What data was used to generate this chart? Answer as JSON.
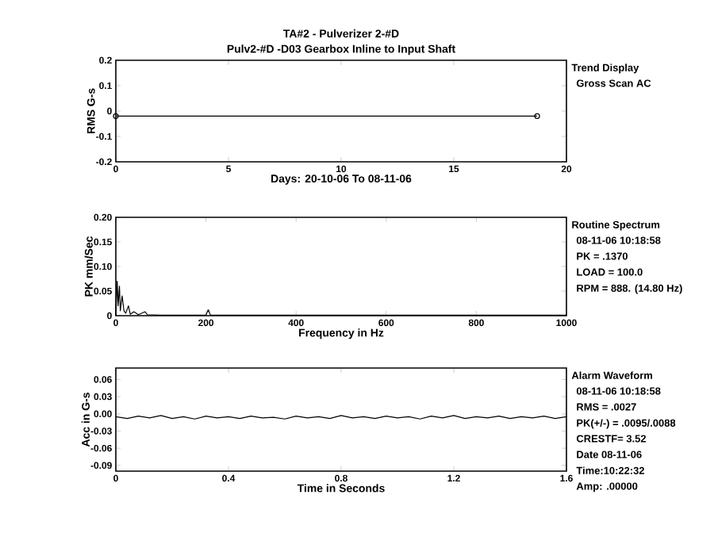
{
  "chart_data": [
    {
      "type": "line",
      "title": "TA#2 - Pulverizer 2-#D",
      "subtitle": "Pulv2-#D  -D03   Gearbox Inline to Input Shaft",
      "xlabel": "Days:  20-10-06   To  08-11-06",
      "ylabel": "RMS G-s",
      "annotations": [
        "Trend Display",
        "Gross Scan AC"
      ],
      "x": [
        0,
        18.7
      ],
      "series": [
        {
          "color": "#000000",
          "values": [
            -0.02,
            -0.02
          ]
        }
      ],
      "marker": "circle",
      "xlim": [
        0,
        20
      ],
      "ylim": [
        -0.2,
        0.2
      ],
      "xticks": [
        0,
        5,
        10,
        15,
        20
      ],
      "yticks": [
        -0.2,
        -0.1,
        0,
        0.1,
        0.2
      ]
    },
    {
      "type": "line",
      "xlabel": "Frequency in Hz",
      "ylabel": "PK mm/Sec",
      "annotations": [
        "Routine Spectrum",
        "08-11-06   10:18:58",
        "PK  =  .1370",
        "LOAD = 100.0",
        "RPM = 888. (14.80 Hz)"
      ],
      "x": [
        0,
        3,
        5,
        8,
        10,
        14,
        18,
        22,
        28,
        32,
        40,
        50,
        60,
        65,
        70,
        100,
        200,
        205,
        210,
        300,
        1000
      ],
      "series": [
        {
          "color": "#000000",
          "values": [
            0,
            0.07,
            0.02,
            0.06,
            0.01,
            0.04,
            0.01,
            0.005,
            0.02,
            0.003,
            0.008,
            0.002,
            0.006,
            0.008,
            0.002,
            0.001,
            0.001,
            0.012,
            0.001,
            0.001,
            0.001
          ]
        }
      ],
      "marker": "none",
      "xlim": [
        0,
        1000
      ],
      "ylim": [
        0,
        0.2
      ],
      "xticks": [
        0,
        200,
        400,
        600,
        800,
        1000
      ],
      "yticks": [
        0,
        0.05,
        {
          "value": 0.1,
          "label": "0.10"
        },
        0.15,
        {
          "value": 0.2,
          "label": "0.20"
        }
      ]
    },
    {
      "type": "line",
      "xlabel": "Time in Seconds",
      "ylabel": "Acc in G-s",
      "annotations": [
        "Alarm Waveform",
        "08-11-06   10:18:58",
        "RMS =  .0027",
        "PK(+/-) = .0095/.0088",
        "CRESTF= 3.52",
        "Date 08-11-06",
        "Time:10:22:32",
        "Amp: .00000"
      ],
      "x": [
        0,
        0.04,
        0.08,
        0.12,
        0.16,
        0.2,
        0.24,
        0.28,
        0.32,
        0.36,
        0.4,
        0.44,
        0.48,
        0.52,
        0.56,
        0.6,
        0.64,
        0.68,
        0.72,
        0.76,
        0.8,
        0.84,
        0.88,
        0.92,
        0.96,
        1.0,
        1.04,
        1.08,
        1.12,
        1.16,
        1.2,
        1.24,
        1.28,
        1.32,
        1.36,
        1.4,
        1.44,
        1.48,
        1.52,
        1.56,
        1.6
      ],
      "series": [
        {
          "color": "#000000",
          "values": [
            -0.005,
            -0.008,
            -0.004,
            -0.007,
            -0.003,
            -0.008,
            -0.005,
            -0.009,
            -0.004,
            -0.007,
            -0.005,
            -0.008,
            -0.004,
            -0.007,
            -0.006,
            -0.009,
            -0.004,
            -0.007,
            -0.005,
            -0.008,
            -0.003,
            -0.007,
            -0.005,
            -0.008,
            -0.004,
            -0.007,
            -0.005,
            -0.009,
            -0.004,
            -0.007,
            -0.003,
            -0.008,
            -0.005,
            -0.007,
            -0.004,
            -0.008,
            -0.005,
            -0.007,
            -0.004,
            -0.008,
            -0.005
          ]
        }
      ],
      "marker": "none",
      "xlim": [
        0,
        1.6
      ],
      "ylim": [
        -0.1,
        0.08
      ],
      "xticks": [
        0,
        0.4,
        0.8,
        1.2,
        1.6
      ],
      "yticks": [
        -0.09,
        -0.06,
        -0.03,
        {
          "value": 0,
          "label": "0.00"
        },
        0.03,
        0.06
      ]
    }
  ]
}
